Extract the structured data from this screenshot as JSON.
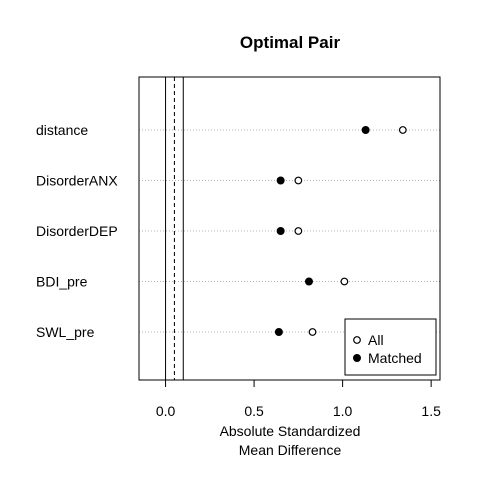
{
  "chart_data": {
    "type": "scatter",
    "title": "Optimal Pair",
    "xlabel_line1": "Absolute Standardized",
    "xlabel_line2": "Mean Difference",
    "xlim": [
      -0.15,
      1.55
    ],
    "x_ticks": [
      0.0,
      0.5,
      1.0,
      1.5
    ],
    "x_tick_labels": [
      "0.0",
      "0.5",
      "1.0",
      "1.5"
    ],
    "reference_lines": [
      {
        "x": 0.0,
        "style": "solid"
      },
      {
        "x": 0.05,
        "style": "dashed"
      },
      {
        "x": 0.1,
        "style": "solid"
      }
    ],
    "categories": [
      "distance",
      "DisorderANX",
      "DisorderDEP",
      "BDI_pre",
      "SWL_pre"
    ],
    "series": [
      {
        "name": "All",
        "marker": "open-circle",
        "values": [
          1.34,
          0.75,
          0.75,
          1.01,
          0.83
        ]
      },
      {
        "name": "Matched",
        "marker": "filled-circle",
        "values": [
          1.13,
          0.65,
          0.65,
          0.81,
          0.64
        ]
      }
    ],
    "legend": {
      "position": "bottom-right",
      "entries": [
        "All",
        "Matched"
      ]
    },
    "grid": "horizontal-dotted"
  }
}
